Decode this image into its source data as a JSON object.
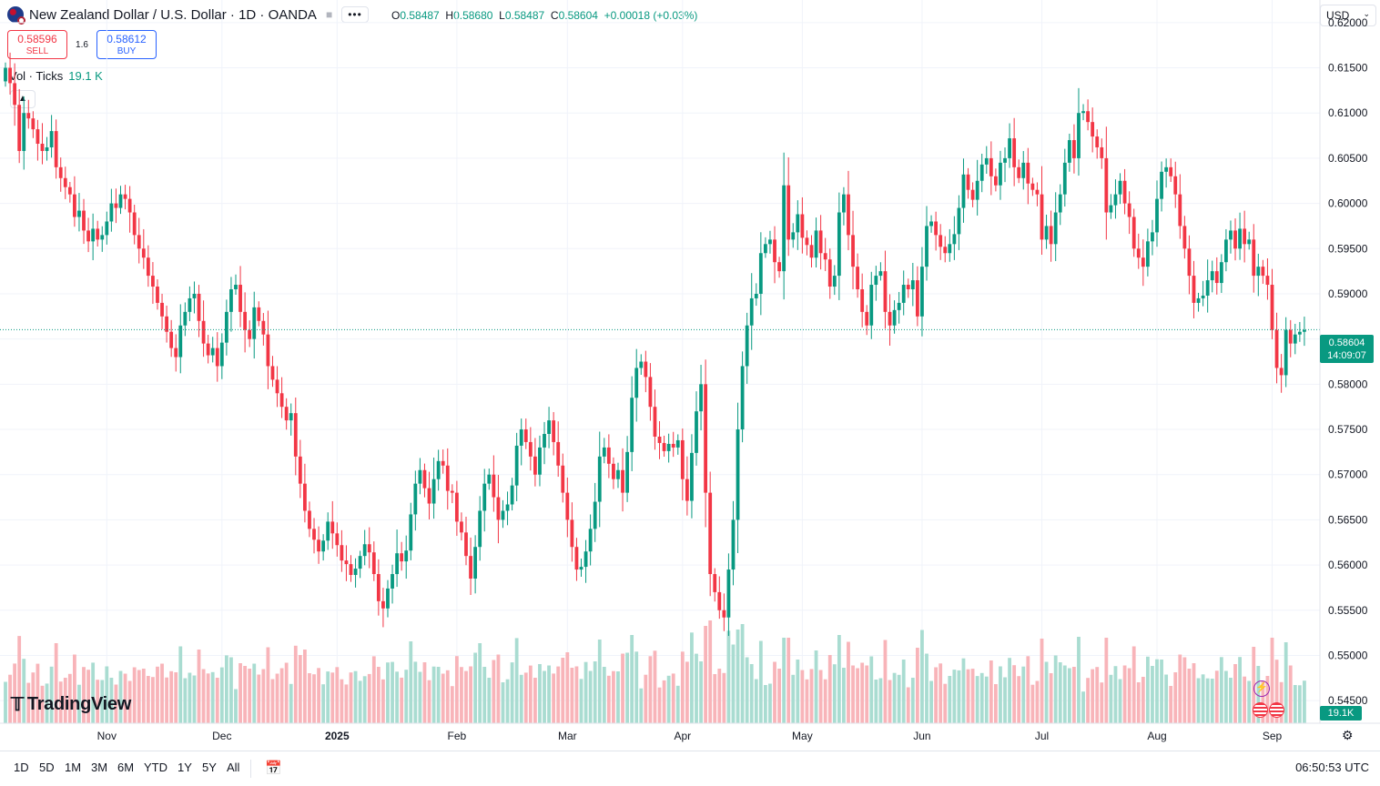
{
  "header": {
    "symbol": "New Zealand Dollar / U.S. Dollar · 1D · OANDA",
    "ohlc": {
      "o_label": "O",
      "o": "0.58487",
      "h_label": "H",
      "h": "0.58680",
      "l_label": "L",
      "l": "0.58487",
      "c_label": "C",
      "c": "0.58604",
      "change": "+0.00018 (+0.03%)"
    },
    "more_label": "•••"
  },
  "trade": {
    "sell_price": "0.58596",
    "sell_label": "SELL",
    "spread": "1.6",
    "buy_price": "0.58612",
    "buy_label": "BUY"
  },
  "volume_legend": {
    "label": "Vol · Ticks",
    "value": "19.1 K"
  },
  "currency_selector": "USD",
  "last_price_tag": {
    "price": "0.58604",
    "countdown": "14:09:07"
  },
  "volume_tag": "19.1K",
  "logo_text": "TradingView",
  "bottom": {
    "timeframes": [
      "1D",
      "5D",
      "1M",
      "3M",
      "6M",
      "YTD",
      "1Y",
      "5Y",
      "All"
    ],
    "time": "06:50:53 UTC"
  },
  "colors": {
    "up": "#089981",
    "down": "#f23645",
    "up_vol": "#a9dcd1",
    "down_vol": "#f8b4b9",
    "grid": "#f0f3fa"
  },
  "chart_data": {
    "type": "candlestick",
    "y_axis_side": "right",
    "ylim": [
      0.5425,
      0.6225
    ],
    "y_ticks": [
      "0.62000",
      "0.61500",
      "0.61000",
      "0.60500",
      "0.60000",
      "0.59500",
      "0.59000",
      "0.58500",
      "0.58000",
      "0.57500",
      "0.57000",
      "0.56500",
      "0.56000",
      "0.55500",
      "0.55000",
      "0.54500"
    ],
    "x_tick_labels": [
      "Nov",
      "Dec",
      "2025",
      "Feb",
      "Mar",
      "Apr",
      "May",
      "Jun",
      "Jul",
      "Aug",
      "Sep"
    ],
    "x_tick_index": [
      22,
      47,
      72,
      98,
      122,
      147,
      173,
      199,
      225,
      250,
      275
    ],
    "last_price": 0.58604,
    "closes": [
      0.615,
      0.6133,
      0.6109,
      0.6058,
      0.61,
      0.6094,
      0.6082,
      0.6066,
      0.6058,
      0.6062,
      0.608,
      0.604,
      0.6028,
      0.6018,
      0.601,
      0.5985,
      0.5992,
      0.597,
      0.5958,
      0.5972,
      0.596,
      0.5965,
      0.598,
      0.6,
      0.5995,
      0.601,
      0.6005,
      0.599,
      0.5965,
      0.595,
      0.594,
      0.592,
      0.5908,
      0.589,
      0.5875,
      0.5858,
      0.584,
      0.583,
      0.5865,
      0.588,
      0.5895,
      0.59,
      0.587,
      0.5845,
      0.5832,
      0.584,
      0.582,
      0.5846,
      0.588,
      0.5905,
      0.591,
      0.588,
      0.586,
      0.585,
      0.5885,
      0.587,
      0.5855,
      0.582,
      0.5805,
      0.579,
      0.5775,
      0.576,
      0.5768,
      0.572,
      0.569,
      0.566,
      0.564,
      0.5628,
      0.5615,
      0.5627,
      0.5648,
      0.5635,
      0.5622,
      0.5605,
      0.5601,
      0.5589,
      0.5596,
      0.561,
      0.5623,
      0.5614,
      0.559,
      0.556,
      0.5552,
      0.5574,
      0.559,
      0.5613,
      0.5604,
      0.5616,
      0.5656,
      0.569,
      0.5705,
      0.5685,
      0.5668,
      0.5695,
      0.5715,
      0.571,
      0.5682,
      0.568,
      0.5648,
      0.5636,
      0.561,
      0.5585,
      0.562,
      0.566,
      0.569,
      0.57,
      0.5675,
      0.565,
      0.566,
      0.5667,
      0.5688,
      0.5732,
      0.575,
      0.5736,
      0.572,
      0.57,
      0.573,
      0.5745,
      0.576,
      0.5736,
      0.571,
      0.568,
      0.565,
      0.562,
      0.5595,
      0.5598,
      0.5615,
      0.564,
      0.567,
      0.572,
      0.573,
      0.5712,
      0.5695,
      0.5705,
      0.568,
      0.5725,
      0.5785,
      0.5818,
      0.5825,
      0.5808,
      0.5775,
      0.5742,
      0.5735,
      0.5726,
      0.5734,
      0.573,
      0.5738,
      0.5695,
      0.5671,
      0.5724,
      0.577,
      0.58,
      0.568,
      0.559,
      0.557,
      0.555,
      0.5542,
      0.5595,
      0.565,
      0.575,
      0.582,
      0.5865,
      0.5895,
      0.59,
      0.5945,
      0.5955,
      0.596,
      0.5935,
      0.5925,
      0.602,
      0.596,
      0.5968,
      0.5988,
      0.5962,
      0.5954,
      0.594,
      0.597,
      0.5945,
      0.5938,
      0.5908,
      0.592,
      0.599,
      0.601,
      0.5965,
      0.593,
      0.5905,
      0.588,
      0.5865,
      0.591,
      0.592,
      0.5925,
      0.588,
      0.5865,
      0.5882,
      0.589,
      0.591,
      0.5905,
      0.5915,
      0.5875,
      0.593,
      0.5975,
      0.598,
      0.5965,
      0.5952,
      0.5945,
      0.5955,
      0.5966,
      0.5995,
      0.6032,
      0.6015,
      0.6004,
      0.6025,
      0.6043,
      0.605,
      0.603,
      0.602,
      0.6045,
      0.605,
      0.6072,
      0.604,
      0.6028,
      0.6045,
      0.6022,
      0.6015,
      0.601,
      0.596,
      0.5975,
      0.5955,
      0.599,
      0.601,
      0.6045,
      0.607,
      0.605,
      0.61,
      0.6102,
      0.609,
      0.6074,
      0.6062,
      0.605,
      0.599,
      0.5998,
      0.601,
      0.6025,
      0.6,
      0.5985,
      0.595,
      0.594,
      0.593,
      0.5958,
      0.5968,
      0.6005,
      0.6035,
      0.604,
      0.603,
      0.601,
      0.5975,
      0.595,
      0.592,
      0.589,
      0.5895,
      0.5898,
      0.5915,
      0.5925,
      0.5912,
      0.5935,
      0.596,
      0.597,
      0.595,
      0.5972,
      0.5955,
      0.596,
      0.592,
      0.593,
      0.592,
      0.591,
      0.586,
      0.5818,
      0.581,
      0.586,
      0.5845,
      0.5855,
      0.5858,
      0.586
    ]
  }
}
